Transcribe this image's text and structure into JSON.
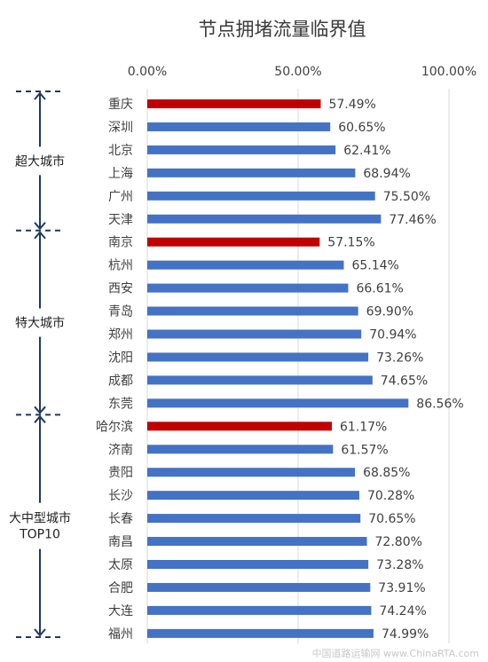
{
  "chart_data": {
    "type": "bar",
    "orientation": "horizontal",
    "title": "节点拥堵流量临界值",
    "x_ticks": [
      "0.00%",
      "50.00%",
      "100.00%"
    ],
    "xlim": [
      0,
      100
    ],
    "grid": true,
    "categories": [
      "重庆",
      "深圳",
      "北京",
      "上海",
      "广州",
      "天津",
      "南京",
      "杭州",
      "西安",
      "青岛",
      "郑州",
      "沈阳",
      "成都",
      "东莞",
      "哈尔滨",
      "济南",
      "贵阳",
      "长沙",
      "长春",
      "南昌",
      "太原",
      "合肥",
      "大连",
      "福州"
    ],
    "values": [
      57.49,
      60.65,
      62.41,
      68.94,
      75.5,
      77.46,
      57.15,
      65.14,
      66.61,
      69.9,
      70.94,
      73.26,
      74.65,
      86.56,
      61.17,
      61.57,
      68.85,
      70.28,
      70.65,
      72.8,
      73.28,
      73.91,
      74.24,
      74.99
    ],
    "value_labels": [
      "57.49%",
      "60.65%",
      "62.41%",
      "68.94%",
      "75.50%",
      "77.46%",
      "57.15%",
      "65.14%",
      "66.61%",
      "69.90%",
      "70.94%",
      "73.26%",
      "74.65%",
      "86.56%",
      "61.17%",
      "61.57%",
      "68.85%",
      "70.28%",
      "70.65%",
      "72.80%",
      "73.28%",
      "73.91%",
      "74.24%",
      "74.99%"
    ],
    "highlight_indices": [
      0,
      6,
      14
    ],
    "groups": [
      {
        "label_lines": [
          "超大城市"
        ],
        "start": 0,
        "end": 5
      },
      {
        "label_lines": [
          "特大城市"
        ],
        "start": 6,
        "end": 13
      },
      {
        "label_lines": [
          "大中型城市",
          "TOP10"
        ],
        "start": 14,
        "end": 23
      }
    ]
  },
  "colors": {
    "bar": "#4472c4",
    "highlight": "#c00000",
    "grid": "#d9d9d9",
    "bracket": "#1f3864"
  },
  "watermark": "中国道路运输网 www.ChinaRTA.com"
}
